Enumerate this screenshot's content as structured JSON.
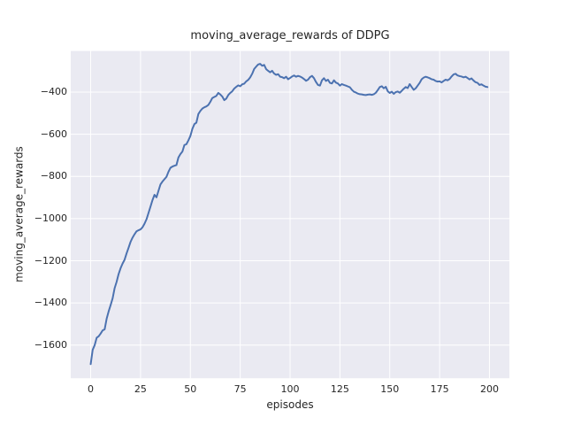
{
  "chart_data": {
    "type": "line",
    "title": "moving_average_rewards of DDPG",
    "xlabel": "episodes",
    "ylabel": "moving_average_rewards",
    "grid": true,
    "legend": "none",
    "style": "seaborn-darkgrid",
    "colors": {
      "figure_bg": "#ffffff",
      "axes_bg": "#eaeaf2",
      "grid": "#ffffff",
      "line": "#4c72b0",
      "text": "#262626"
    },
    "xlim": [
      -10,
      210
    ],
    "ylim": [
      -1757,
      -205
    ],
    "xticks": {
      "values": [
        0,
        25,
        50,
        75,
        100,
        125,
        150,
        175,
        200
      ],
      "labels": [
        "0",
        "25",
        "50",
        "75",
        "100",
        "125",
        "150",
        "175",
        "200"
      ]
    },
    "yticks": {
      "values": [
        -400,
        -600,
        -800,
        -1000,
        -1200,
        -1400,
        -1600
      ],
      "labels": [
        "−400",
        "−600",
        "−800",
        "−1000",
        "−1200",
        "−1400",
        "−1600"
      ]
    },
    "series": [
      {
        "name": "moving_average_rewards",
        "color": "#4c72b0",
        "x": [
          0,
          1,
          2,
          3,
          4,
          5,
          6,
          7,
          8,
          9,
          10,
          11,
          12,
          13,
          14,
          15,
          16,
          17,
          18,
          19,
          20,
          21,
          22,
          23,
          24,
          25,
          26,
          27,
          28,
          29,
          30,
          31,
          32,
          33,
          34,
          35,
          36,
          37,
          38,
          39,
          40,
          41,
          42,
          43,
          44,
          45,
          46,
          47,
          48,
          49,
          50,
          51,
          52,
          53,
          54,
          55,
          56,
          57,
          58,
          59,
          60,
          61,
          62,
          63,
          64,
          65,
          66,
          67,
          68,
          69,
          70,
          71,
          72,
          73,
          74,
          75,
          76,
          77,
          78,
          79,
          80,
          81,
          82,
          83,
          84,
          85,
          86,
          87,
          88,
          89,
          90,
          91,
          92,
          93,
          94,
          95,
          96,
          97,
          98,
          99,
          100,
          101,
          102,
          103,
          104,
          105,
          106,
          107,
          108,
          109,
          110,
          111,
          112,
          113,
          114,
          115,
          116,
          117,
          118,
          119,
          120,
          121,
          122,
          123,
          124,
          125,
          126,
          127,
          128,
          129,
          130,
          131,
          132,
          133,
          134,
          135,
          136,
          137,
          138,
          139,
          140,
          141,
          142,
          143,
          144,
          145,
          146,
          147,
          148,
          149,
          150,
          151,
          152,
          153,
          154,
          155,
          156,
          157,
          158,
          159,
          160,
          161,
          162,
          163,
          164,
          165,
          166,
          167,
          168,
          169,
          170,
          171,
          172,
          173,
          174,
          175,
          176,
          177,
          178,
          179,
          180,
          181,
          182,
          183,
          184,
          185,
          186,
          187,
          188,
          189,
          190,
          191,
          192,
          193,
          194,
          195,
          196,
          197,
          198,
          199
        ],
        "y": [
          -1690,
          -1622,
          -1600,
          -1565,
          -1558,
          -1545,
          -1530,
          -1525,
          -1475,
          -1440,
          -1410,
          -1378,
          -1330,
          -1300,
          -1263,
          -1235,
          -1213,
          -1195,
          -1165,
          -1138,
          -1110,
          -1090,
          -1074,
          -1060,
          -1055,
          -1051,
          -1041,
          -1024,
          -1003,
          -973,
          -943,
          -912,
          -887,
          -899,
          -868,
          -838,
          -824,
          -813,
          -802,
          -778,
          -759,
          -753,
          -749,
          -746,
          -710,
          -694,
          -682,
          -651,
          -647,
          -629,
          -608,
          -574,
          -552,
          -545,
          -504,
          -489,
          -478,
          -472,
          -468,
          -461,
          -446,
          -428,
          -423,
          -418,
          -404,
          -411,
          -421,
          -438,
          -431,
          -414,
          -404,
          -396,
          -383,
          -375,
          -368,
          -372,
          -363,
          -360,
          -349,
          -342,
          -330,
          -313,
          -290,
          -279,
          -269,
          -266,
          -275,
          -271,
          -291,
          -299,
          -306,
          -299,
          -312,
          -318,
          -315,
          -327,
          -329,
          -334,
          -327,
          -339,
          -333,
          -326,
          -321,
          -327,
          -323,
          -326,
          -331,
          -338,
          -346,
          -341,
          -329,
          -323,
          -334,
          -352,
          -366,
          -369,
          -344,
          -334,
          -347,
          -341,
          -356,
          -359,
          -344,
          -355,
          -359,
          -369,
          -362,
          -366,
          -369,
          -373,
          -377,
          -389,
          -398,
          -402,
          -407,
          -410,
          -411,
          -413,
          -414,
          -412,
          -411,
          -413,
          -410,
          -403,
          -390,
          -376,
          -372,
          -382,
          -375,
          -396,
          -404,
          -398,
          -408,
          -400,
          -397,
          -403,
          -394,
          -384,
          -376,
          -381,
          -362,
          -376,
          -389,
          -382,
          -369,
          -356,
          -339,
          -331,
          -327,
          -330,
          -334,
          -339,
          -341,
          -347,
          -350,
          -349,
          -354,
          -347,
          -341,
          -344,
          -338,
          -326,
          -316,
          -313,
          -321,
          -324,
          -326,
          -330,
          -327,
          -333,
          -340,
          -335,
          -345,
          -353,
          -356,
          -366,
          -363,
          -369,
          -374,
          -376
        ]
      }
    ]
  }
}
